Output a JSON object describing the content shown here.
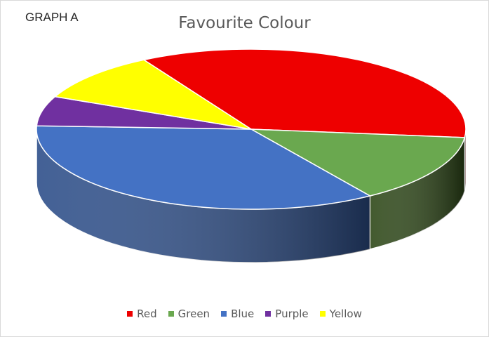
{
  "graph_label": "GRAPH A",
  "chart_data": {
    "type": "pie",
    "title": "Favourite Colour",
    "categories": [
      "Red",
      "Green",
      "Blue",
      "Purple",
      "Yellow"
    ],
    "values": [
      35,
      14,
      35,
      6,
      10
    ],
    "colors": [
      "#ee0000",
      "#6aa84f",
      "#4472c4",
      "#7030a0",
      "#ffff00"
    ],
    "side_colors": [
      "#9a0000",
      "#2e4818",
      "#2e4f8a",
      "#4b2070",
      "#a8a800"
    ],
    "legend_position": "bottom",
    "style": "3d"
  }
}
